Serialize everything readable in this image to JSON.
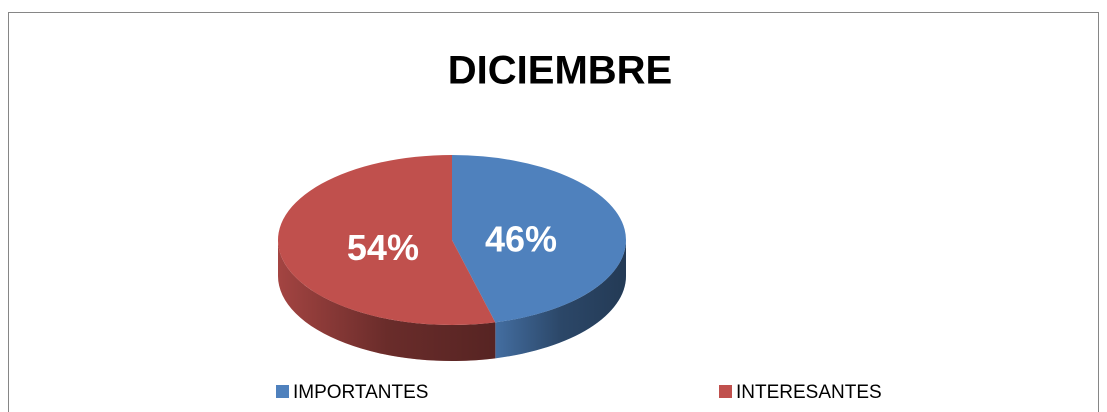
{
  "chart_data": {
    "type": "pie",
    "title": "DICIEMBRE",
    "categories": [
      "IMPORTANTES",
      "INTERESANTES"
    ],
    "values": [
      46,
      54
    ],
    "value_labels": [
      "46%",
      "54%"
    ],
    "colors": [
      "#4f81bd",
      "#c0504d"
    ],
    "legend": "bottom"
  }
}
